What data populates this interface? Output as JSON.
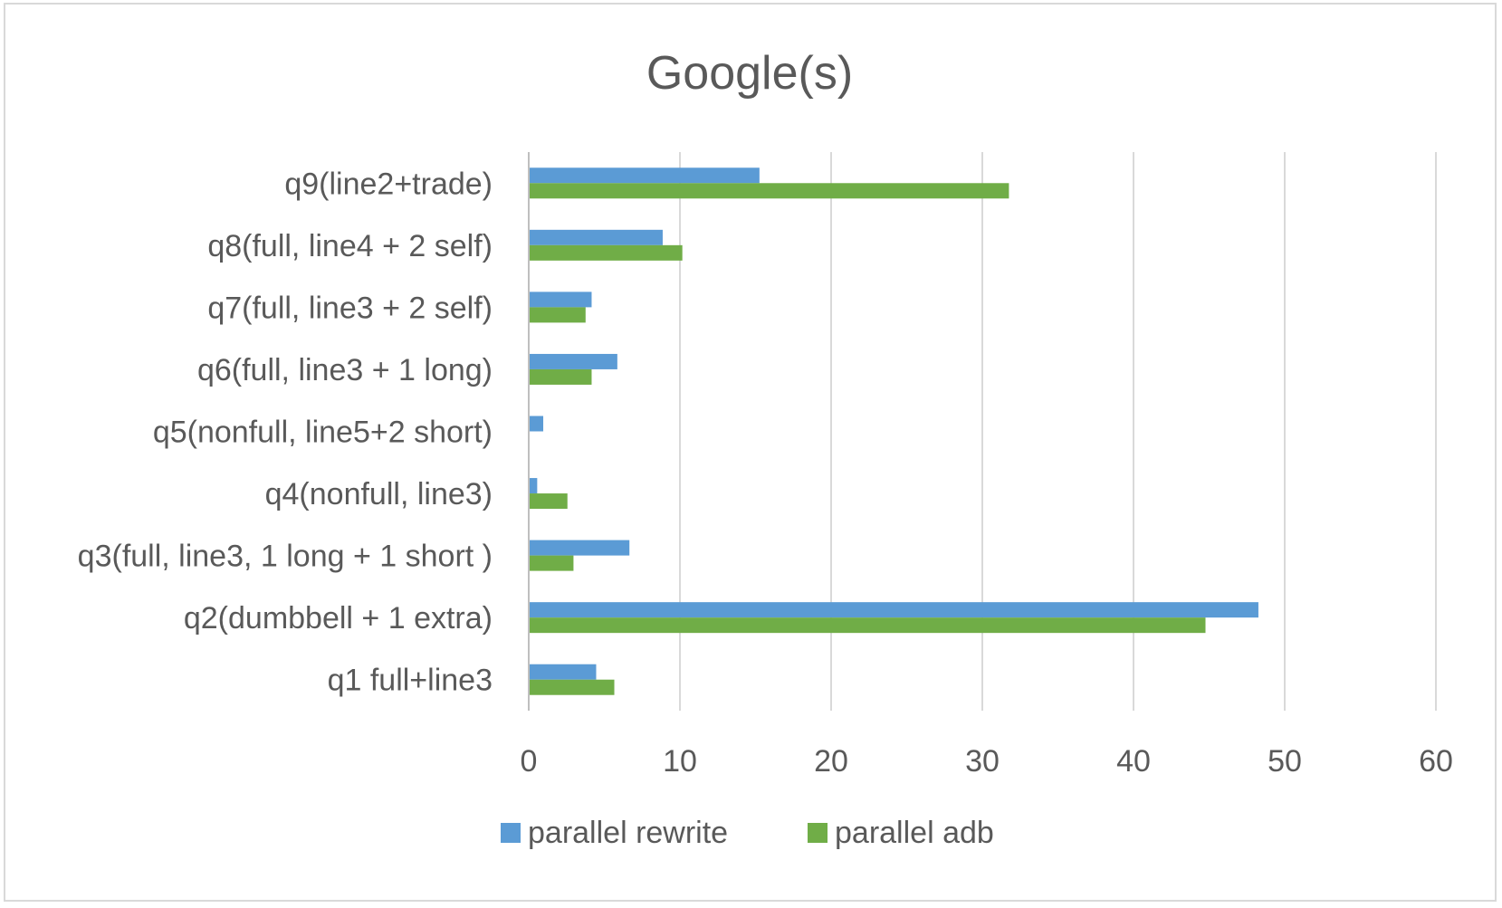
{
  "chart_data": {
    "type": "bar",
    "orientation": "horizontal",
    "title": "Google(s)",
    "xlabel": "",
    "ylabel": "",
    "xlim": [
      0,
      60
    ],
    "x_ticks": [
      0,
      10,
      20,
      30,
      40,
      50,
      60
    ],
    "grid": true,
    "legend_position": "bottom",
    "categories": [
      "q1 full+line3",
      "q2(dumbbell + 1 extra)",
      "q3(full, line3, 1 long + 1 short )",
      "q4(nonfull, line3)",
      "q5(nonfull, line5+2 short)",
      "q6(full, line3 + 1 long)",
      "q7(full, line3 + 2 self)",
      "q8(full, line4 + 2 self)",
      "q9(line2+trade)"
    ],
    "series": [
      {
        "name": "parallel rewrite",
        "color": "#5b9bd5",
        "values": [
          4.4,
          48.2,
          6.6,
          0.5,
          0.9,
          5.8,
          4.1,
          8.8,
          15.2
        ]
      },
      {
        "name": "parallel adb",
        "color": "#70ad47",
        "values": [
          5.6,
          44.7,
          2.9,
          2.5,
          0,
          4.1,
          3.7,
          10.1,
          31.7
        ]
      }
    ]
  }
}
